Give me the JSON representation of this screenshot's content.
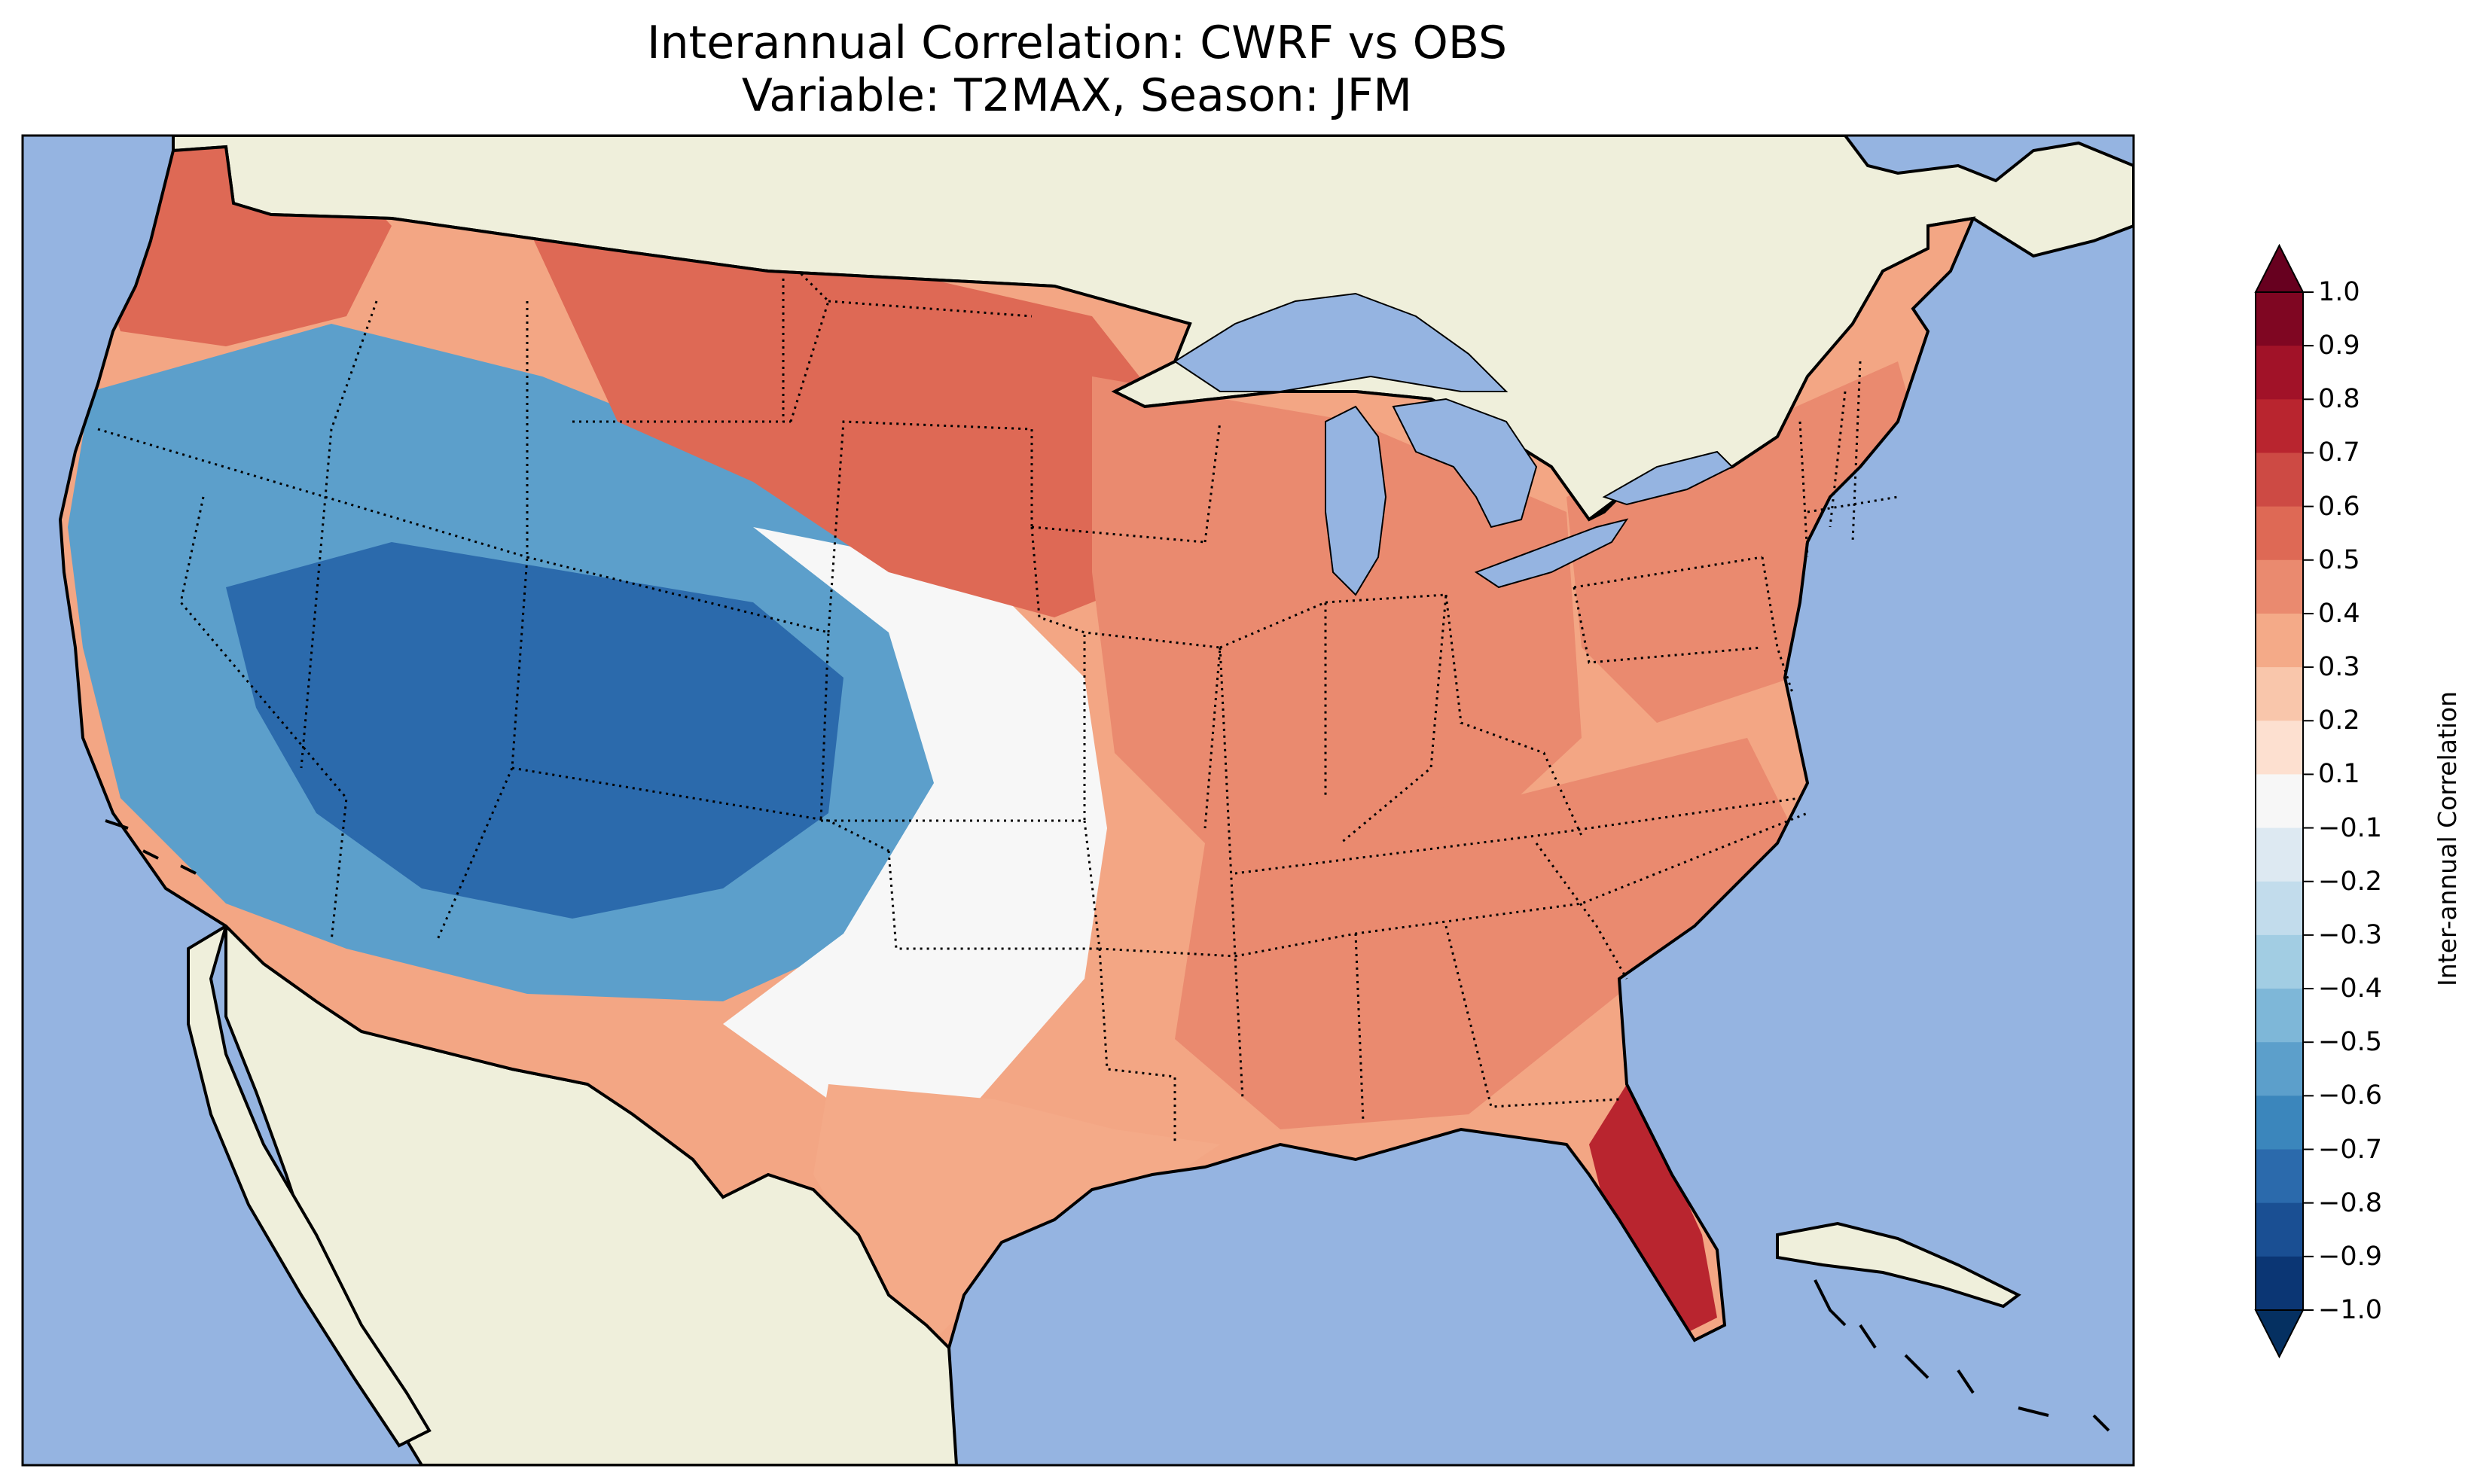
{
  "title": {
    "line1": "Interannual Correlation: CWRF vs OBS",
    "line2": "Variable: T2MAX, Season: JFM"
  },
  "map": {
    "ocean_color": "#95b4e1",
    "land_color": "#efefdb",
    "lake_color": "#95b4e1",
    "coastline_color": "#000000",
    "regions": [
      {
        "name": "pacific-northwest-coast",
        "value": 0.5
      },
      {
        "name": "great-basin-rockies",
        "value": -0.6
      },
      {
        "name": "four-corners-core",
        "value": -0.75
      },
      {
        "name": "southern-plains",
        "value": 0.0
      },
      {
        "name": "northern-plains",
        "value": 0.55
      },
      {
        "name": "midwest",
        "value": 0.4
      },
      {
        "name": "southeast",
        "value": 0.45
      },
      {
        "name": "northeast",
        "value": 0.4
      },
      {
        "name": "florida-peninsula",
        "value": 0.75
      },
      {
        "name": "gulf-coast-texas",
        "value": 0.35
      }
    ]
  },
  "colorbar": {
    "label": "Inter-annual Correlation",
    "ticks": [
      "1.0",
      "0.9",
      "0.8",
      "0.7",
      "0.6",
      "0.5",
      "0.4",
      "0.3",
      "0.2",
      "0.1",
      "−0.1",
      "−0.2",
      "−0.3",
      "−0.4",
      "−0.5",
      "−0.6",
      "−0.7",
      "−0.8",
      "−0.9",
      "−1.0"
    ],
    "levels": [
      1.0,
      0.9,
      0.8,
      0.7,
      0.6,
      0.5,
      0.4,
      0.3,
      0.2,
      0.1,
      -0.1,
      -0.2,
      -0.3,
      -0.4,
      -0.5,
      -0.6,
      -0.7,
      -0.8,
      -0.9,
      -1.0
    ],
    "colors": [
      "#67001f",
      "#7f0622",
      "#a11228",
      "#b9252f",
      "#cd4a44",
      "#de6955",
      "#ea8a6f",
      "#f4aa88",
      "#f9c6ab",
      "#fde0d0",
      "#f7f7f7",
      "#dde9f2",
      "#c2dcec",
      "#a2cde3",
      "#7eb7d8",
      "#5c9fcb",
      "#3b86bc",
      "#2b6aac",
      "#1a4f93",
      "#0b3674",
      "#053061"
    ]
  }
}
